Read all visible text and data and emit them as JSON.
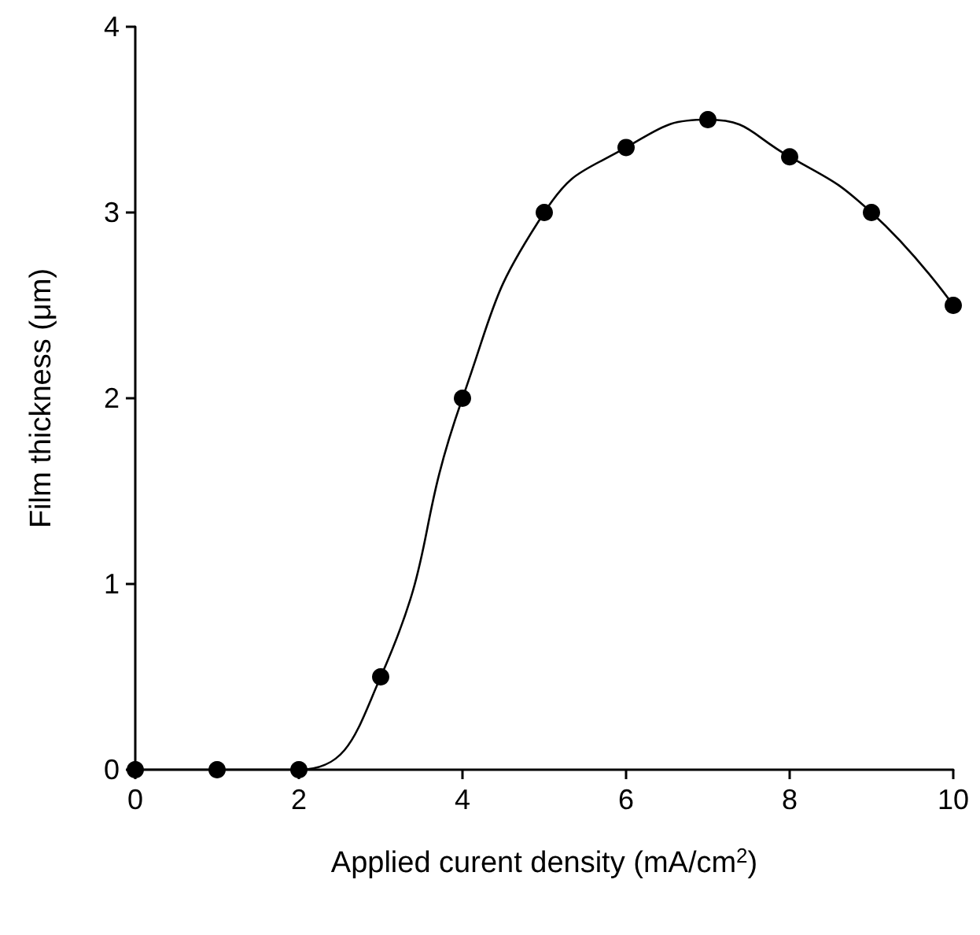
{
  "chart_data": {
    "type": "line",
    "xlabel": "Applied curent density (mA/cm$^{2}$)",
    "ylabel": "Film thickness (μm)",
    "x": [
      0,
      1,
      2,
      3,
      4,
      5,
      6,
      7,
      8,
      9,
      10
    ],
    "series": [
      {
        "color": "#000000",
        "values": [
          0,
          0,
          0,
          0.5,
          2,
          3,
          3.35,
          3.5,
          3.3,
          3,
          2.5
        ]
      }
    ],
    "xlim": [
      0,
      10
    ],
    "xticks": [
      0,
      2,
      4,
      6,
      8,
      10
    ],
    "ylim": [
      0,
      4
    ],
    "yticks": [
      0,
      1,
      2,
      3,
      4
    ],
    "grid": false,
    "marker": "circle",
    "line_style": "solid"
  }
}
